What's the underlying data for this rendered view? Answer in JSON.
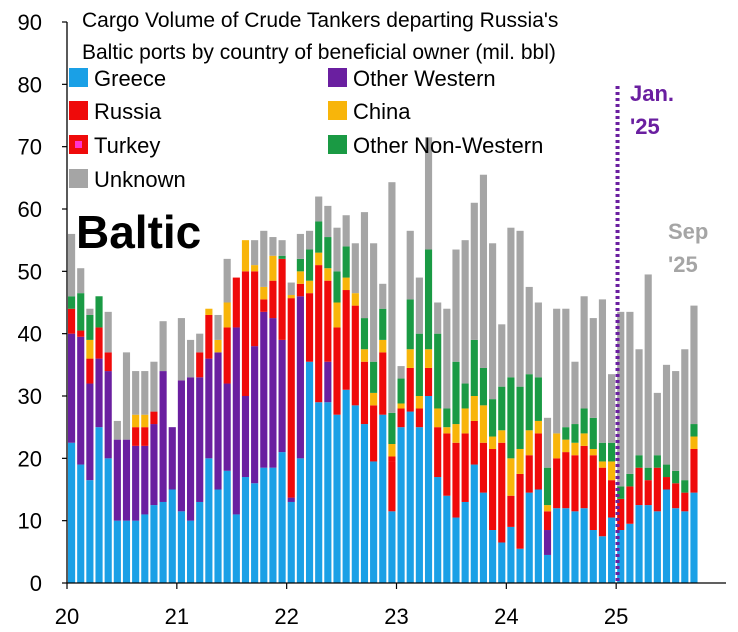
{
  "chart_data": {
    "type": "bar",
    "stacked": true,
    "title_lines": [
      "Cargo Volume of Crude Tankers departing Russia's",
      "Baltic ports by country of beneficial owner (mil. bbl)"
    ],
    "region_label": "Baltic",
    "xlabel": "",
    "ylabel": "",
    "ylim": [
      0,
      90
    ],
    "yticks": [
      "0",
      "10",
      "20",
      "30",
      "40",
      "50",
      "60",
      "70",
      "80",
      "90"
    ],
    "xticks": [
      {
        "label": "20",
        "month": 0
      },
      {
        "label": "21",
        "month": 12
      },
      {
        "label": "22",
        "month": 24
      },
      {
        "label": "23",
        "month": 36
      },
      {
        "label": "24",
        "month": 48
      },
      {
        "label": "25",
        "month": 60
      }
    ],
    "x_max_month": 72,
    "grid": false,
    "legend_position": "top-left, two columns",
    "months": [
      "Jan 2020",
      "Feb 2020",
      "Mar 2020",
      "Apr 2020",
      "May 2020",
      "Jun 2020",
      "Jul 2020",
      "Aug 2020",
      "Sep 2020",
      "Oct 2020",
      "Nov 2020",
      "Dec 2020",
      "Jan 2021",
      "Feb 2021",
      "Mar 2021",
      "Apr 2021",
      "May 2021",
      "Jun 2021",
      "Jul 2021",
      "Aug 2021",
      "Sep 2021",
      "Oct 2021",
      "Nov 2021",
      "Dec 2021",
      "Jan 2022",
      "Feb 2022",
      "Mar 2022",
      "Apr 2022",
      "May 2022",
      "Jun 2022",
      "Jul 2022",
      "Aug 2022",
      "Sep 2022",
      "Oct 2022",
      "Nov 2022",
      "Dec 2022",
      "Jan 2023",
      "Feb 2023",
      "Mar 2023",
      "Apr 2023",
      "May 2023",
      "Jun 2023",
      "Jul 2023",
      "Aug 2023",
      "Sep 2023",
      "Oct 2023",
      "Nov 2023",
      "Dec 2023",
      "Jan 2024",
      "Feb 2024",
      "Mar 2024",
      "Apr 2024",
      "May 2024",
      "Jun 2024",
      "Jul 2024",
      "Aug 2024",
      "Sep 2024",
      "Oct 2024",
      "Nov 2024",
      "Dec 2024",
      "Jan 2025",
      "Feb 2025",
      "Mar 2025",
      "Apr 2025",
      "May 2025",
      "Jun 2025",
      "Jul 2025",
      "Aug 2025",
      "Sep 2025"
    ],
    "series": [
      {
        "name": "Greece",
        "color": "#1aa0e6",
        "values": [
          22.5,
          19,
          16.5,
          25,
          20,
          10,
          10,
          10,
          11,
          12.5,
          13,
          15,
          11.5,
          10,
          13,
          20,
          15,
          18,
          11,
          17,
          16,
          18.5,
          18.5,
          21,
          13,
          20,
          35.5,
          29,
          29,
          27,
          31,
          28.5,
          25.5,
          19.5,
          27,
          11.5,
          25,
          27.5,
          25,
          30,
          17,
          14,
          10.5,
          13,
          19,
          14.5,
          8.5,
          6.5,
          9,
          5.5,
          14.5,
          15,
          4.5,
          12,
          12,
          11.5,
          12,
          8.5,
          7.5,
          10.5,
          8.5,
          9.5,
          12.5,
          12.5,
          11.5,
          15,
          12,
          11.5,
          14.5
        ]
      },
      {
        "name": "Other Western",
        "color": "#6a1fa0",
        "values": [
          17.5,
          20.5,
          15.5,
          11,
          14,
          13,
          13,
          12,
          11,
          13,
          21,
          10,
          21,
          23,
          20,
          16,
          22,
          14,
          30,
          13,
          22,
          25,
          24,
          18,
          0.7,
          26,
          0,
          0,
          6.5,
          0,
          0,
          0,
          0,
          0,
          0,
          0,
          0,
          0,
          0,
          0,
          0,
          0,
          0,
          0,
          0,
          0,
          0,
          0,
          0,
          0,
          0,
          0,
          4,
          0,
          0,
          0,
          0,
          0,
          0,
          0,
          0,
          0,
          0,
          0,
          0,
          0,
          0,
          0,
          0
        ]
      },
      {
        "name": "Russia",
        "color": "#ef0a0a",
        "values": [
          4,
          1,
          4,
          5,
          3,
          0,
          0,
          3,
          3,
          2,
          0,
          0,
          0,
          0,
          4,
          7,
          0,
          9,
          8,
          20,
          12,
          2,
          6,
          13,
          32,
          2,
          11,
          22,
          13,
          14,
          16,
          16,
          10,
          9,
          10,
          8,
          3,
          7,
          3,
          4.5,
          8,
          10,
          12,
          11,
          7,
          8,
          13,
          16,
          5,
          12,
          6,
          9,
          3,
          8,
          9,
          9,
          10,
          12,
          11,
          6,
          5,
          6,
          6,
          4,
          7,
          2,
          4,
          3,
          7
        ]
      },
      {
        "name": "Turkey",
        "color": "#ef0a0a",
        "values": [
          0,
          0,
          0,
          0,
          0,
          0,
          0,
          0,
          0,
          0,
          0,
          0,
          0,
          0,
          0,
          0,
          0,
          0,
          0,
          0,
          0,
          0,
          0,
          0,
          0,
          0,
          0,
          0,
          0,
          0,
          0,
          0,
          0,
          0,
          0,
          0.8,
          0,
          0,
          0,
          0,
          0,
          0,
          0,
          0,
          0,
          0,
          0,
          0,
          0,
          0,
          0,
          0,
          0,
          0,
          0,
          0,
          0,
          0,
          0,
          0,
          0,
          0,
          0,
          0,
          0,
          0,
          0,
          0,
          0
        ]
      },
      {
        "name": "China",
        "color": "#f8b50a",
        "values": [
          0,
          0,
          3,
          0,
          0,
          0,
          0,
          2,
          2,
          0,
          0,
          0,
          0,
          0,
          0,
          1,
          2,
          4,
          0,
          5,
          1,
          2,
          4,
          0,
          0.5,
          2,
          2,
          2,
          2,
          4,
          2,
          2,
          2,
          2,
          2,
          2,
          0.8,
          3,
          2,
          3,
          3,
          1,
          3,
          4,
          4,
          6,
          2,
          2,
          6,
          4,
          4,
          2,
          1,
          4,
          2,
          2,
          2,
          1,
          1,
          3,
          0,
          0,
          0,
          0,
          0,
          0,
          0,
          0,
          2
        ]
      },
      {
        "name": "Other Non-Western",
        "color": "#1a9a44",
        "values": [
          2,
          6,
          4,
          5,
          0,
          0,
          0,
          0,
          0,
          0,
          0,
          0,
          0,
          0,
          0,
          0,
          0,
          0,
          0,
          0,
          0,
          0,
          0,
          0.5,
          0,
          2,
          5,
          5,
          5,
          5,
          5,
          0,
          5,
          5,
          5,
          5,
          4,
          8,
          10,
          16,
          12,
          3,
          10,
          4,
          9,
          6,
          6,
          7,
          13,
          10,
          9,
          7,
          6,
          0,
          2,
          3,
          4,
          5,
          3,
          3,
          2,
          2,
          2,
          2,
          2,
          2,
          2,
          2,
          2
        ]
      },
      {
        "name": "Unknown",
        "color": "#a5a5a5",
        "values": [
          10,
          4,
          1,
          0,
          6.5,
          3,
          14,
          7,
          7,
          8,
          8,
          0,
          10,
          6,
          3,
          0,
          4,
          7,
          0,
          0,
          4,
          9,
          3,
          2.5,
          2,
          4,
          3,
          4,
          5,
          7,
          5,
          8,
          17,
          19,
          4,
          37,
          2,
          11,
          9,
          18,
          5,
          16,
          18,
          23,
          22,
          31,
          25,
          10,
          24,
          25,
          14,
          12,
          8,
          20,
          19,
          10,
          18,
          16,
          23,
          11,
          28,
          26,
          17,
          31,
          10,
          16,
          16,
          21,
          19
        ]
      }
    ]
  },
  "annotations": {
    "jan25": {
      "line1": "Jan.",
      "line2": "'25",
      "month": 60,
      "color": "#6a1fa0"
    },
    "sep25": {
      "line1": "Sep",
      "line2": "'25",
      "color": "#a5a5a5"
    }
  }
}
